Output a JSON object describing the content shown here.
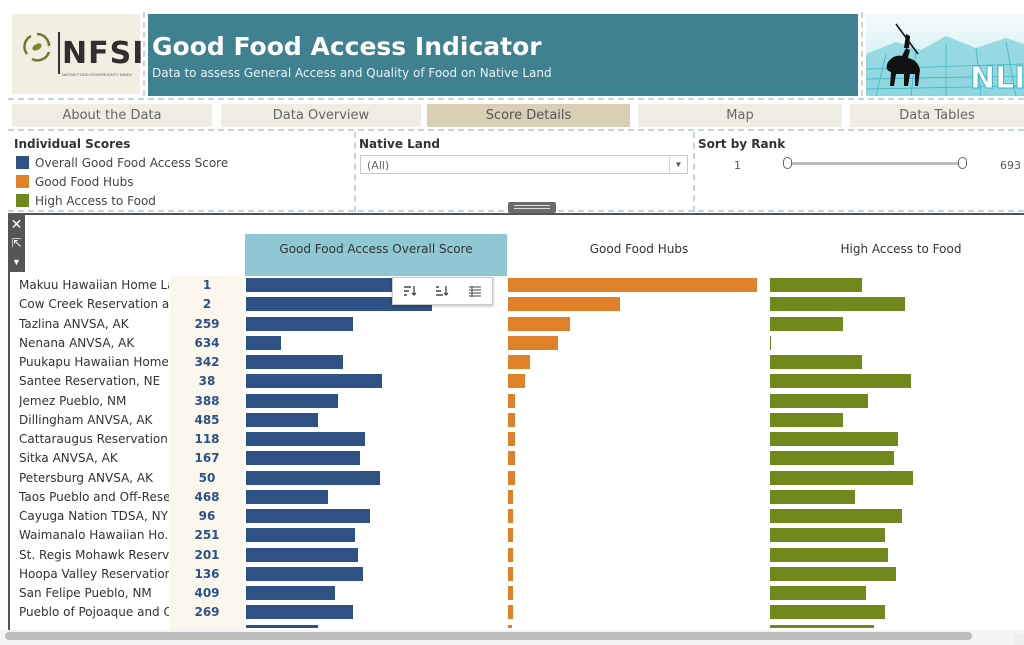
{
  "header": {
    "logo_text": "NFSI",
    "logo_tagline": "NATIVE FOOD SOVEREIGNTY INDEX",
    "title": "Good Food Access Indicator",
    "subtitle": "Data to assess General Access and Quality of Food on Native Land",
    "right_logo_text": "NLIS",
    "banner_color": "#3f8190"
  },
  "tabs": [
    {
      "label": "About the Data",
      "active": false
    },
    {
      "label": "Data Overview",
      "active": false
    },
    {
      "label": "Score Details",
      "active": true
    },
    {
      "label": "Map",
      "active": false
    },
    {
      "label": "Data Tables",
      "active": false
    }
  ],
  "filters": {
    "individual_scores": {
      "title": "Individual Scores",
      "items": [
        {
          "label": "Overall Good Food Access Score",
          "color": "#2d5283"
        },
        {
          "label": "Good Food Hubs",
          "color": "#e0812a"
        },
        {
          "label": "High Access to Food",
          "color": "#71891c"
        }
      ]
    },
    "native_land": {
      "title": "Native Land",
      "selected": "(All)"
    },
    "sort_by_rank": {
      "title": "Sort by Rank",
      "min": "1",
      "max": "693"
    }
  },
  "chart_data": {
    "type": "bar",
    "columns": [
      "Good Food Access Overall Score",
      "Good Food Hubs",
      "High Access to Food"
    ],
    "highlighted_column": "Good Food Access Overall Score",
    "rows": [
      {
        "name": "Makuu Hawaiian Home La..",
        "rank": "1",
        "overall": 0.98,
        "hubs": 1.0,
        "access": 0.49
      },
      {
        "name": "Cow Creek Reservation an..",
        "rank": "2",
        "overall": 0.75,
        "hubs": 0.45,
        "access": 0.72
      },
      {
        "name": "Tazlina ANVSA, AK",
        "rank": "259",
        "overall": 0.43,
        "hubs": 0.25,
        "access": 0.39
      },
      {
        "name": "Nenana ANVSA, AK",
        "rank": "634",
        "overall": 0.14,
        "hubs": 0.2,
        "access": 0.0
      },
      {
        "name": "Puukapu Hawaiian Home ..",
        "rank": "342",
        "overall": 0.39,
        "hubs": 0.09,
        "access": 0.49
      },
      {
        "name": "Santee Reservation, NE",
        "rank": "38",
        "overall": 0.55,
        "hubs": 0.07,
        "access": 0.75
      },
      {
        "name": "Jemez Pueblo, NM",
        "rank": "388",
        "overall": 0.37,
        "hubs": 0.03,
        "access": 0.52
      },
      {
        "name": "Dillingham ANVSA, AK",
        "rank": "485",
        "overall": 0.29,
        "hubs": 0.03,
        "access": 0.39
      },
      {
        "name": "Cattaraugus Reservation,..",
        "rank": "118",
        "overall": 0.48,
        "hubs": 0.03,
        "access": 0.68
      },
      {
        "name": "Sitka ANVSA, AK",
        "rank": "167",
        "overall": 0.46,
        "hubs": 0.03,
        "access": 0.66
      },
      {
        "name": "Petersburg ANVSA, AK",
        "rank": "50",
        "overall": 0.54,
        "hubs": 0.03,
        "access": 0.76
      },
      {
        "name": "Taos Pueblo and Off-Rese..",
        "rank": "468",
        "overall": 0.33,
        "hubs": 0.02,
        "access": 0.45
      },
      {
        "name": "Cayuga Nation TDSA, NY",
        "rank": "96",
        "overall": 0.5,
        "hubs": 0.02,
        "access": 0.7
      },
      {
        "name": "Waimanalo Hawaiian Ho..",
        "rank": "251",
        "overall": 0.44,
        "hubs": 0.02,
        "access": 0.61
      },
      {
        "name": "St. Regis Mohawk Reserv..",
        "rank": "201",
        "overall": 0.45,
        "hubs": 0.02,
        "access": 0.63
      },
      {
        "name": "Hoopa Valley Reservation..",
        "rank": "136",
        "overall": 0.47,
        "hubs": 0.02,
        "access": 0.67
      },
      {
        "name": "San Felipe Pueblo, NM",
        "rank": "409",
        "overall": 0.36,
        "hubs": 0.02,
        "access": 0.51
      },
      {
        "name": "Pueblo of Pojoaque and Of..",
        "rank": "269",
        "overall": 0.43,
        "hubs": 0.02,
        "access": 0.61
      }
    ],
    "colors": {
      "overall": "#2d5283",
      "hubs": "#e0812a",
      "access": "#71891c"
    }
  },
  "toolbar_icons": [
    "sort-ascending-icon",
    "sort-descending-icon",
    "view-data-icon"
  ],
  "side_tools": [
    "close-icon",
    "expand-icon",
    "menu-arrow-icon"
  ]
}
